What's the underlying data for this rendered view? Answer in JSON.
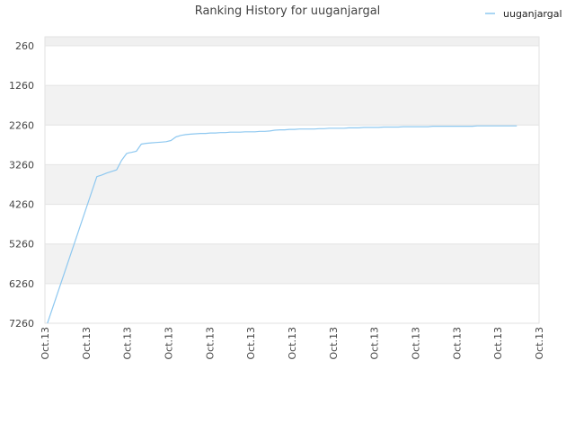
{
  "chart_data": {
    "type": "line",
    "title": "Ranking History for uuganjargal",
    "xlabel": "",
    "ylabel": "",
    "ylim": [
      260,
      7260
    ],
    "y_inverted": true,
    "y_ticks": [
      "260",
      "1260",
      "2260",
      "3260",
      "4260",
      "5260",
      "6260",
      "7260"
    ],
    "x_ticks": [
      "Oct.13",
      "Oct.13",
      "Oct.13",
      "Oct.13",
      "Oct.13",
      "Oct.13",
      "Oct.13",
      "Oct.13",
      "Oct.13",
      "Oct.13",
      "Oct.13",
      "Oct.13",
      "Oct.13"
    ],
    "grid": true,
    "alternating_bands": true,
    "legend_position": "top-right",
    "series": [
      {
        "name": "uuganjargal",
        "color": "#8ec8f0",
        "x": [
          0.005,
          0.105,
          0.115,
          0.125,
          0.135,
          0.145,
          0.155,
          0.165,
          0.17,
          0.175,
          0.185,
          0.195,
          0.205,
          0.215,
          0.225,
          0.235,
          0.245,
          0.255,
          0.265,
          0.275,
          0.285,
          0.295,
          0.305,
          0.315,
          0.325,
          0.335,
          0.345,
          0.355,
          0.365,
          0.375,
          0.385,
          0.395,
          0.405,
          0.415,
          0.425,
          0.435,
          0.445,
          0.455,
          0.465,
          0.475,
          0.485,
          0.495,
          0.505,
          0.515,
          0.525,
          0.535,
          0.545,
          0.555,
          0.565,
          0.575,
          0.585,
          0.595,
          0.605,
          0.615,
          0.625,
          0.635,
          0.645,
          0.655,
          0.665,
          0.675,
          0.685,
          0.695,
          0.705,
          0.715,
          0.725,
          0.735,
          0.745,
          0.755,
          0.765,
          0.775,
          0.785,
          0.795,
          0.805,
          0.815,
          0.825,
          0.835,
          0.845,
          0.855,
          0.865,
          0.875,
          0.885,
          0.895,
          0.905,
          0.915,
          0.925,
          0.935,
          0.945,
          0.955
        ],
        "values": [
          7260,
          3560,
          3520,
          3470,
          3430,
          3390,
          3150,
          2980,
          2960,
          2950,
          2920,
          2740,
          2720,
          2710,
          2700,
          2690,
          2680,
          2650,
          2560,
          2520,
          2500,
          2490,
          2480,
          2470,
          2470,
          2460,
          2460,
          2450,
          2450,
          2440,
          2440,
          2440,
          2430,
          2430,
          2430,
          2420,
          2420,
          2410,
          2390,
          2380,
          2380,
          2370,
          2370,
          2360,
          2360,
          2360,
          2360,
          2350,
          2350,
          2340,
          2340,
          2340,
          2340,
          2330,
          2330,
          2330,
          2320,
          2320,
          2320,
          2320,
          2310,
          2310,
          2310,
          2310,
          2300,
          2300,
          2300,
          2300,
          2300,
          2300,
          2290,
          2290,
          2290,
          2290,
          2290,
          2290,
          2290,
          2290,
          2290,
          2280,
          2280,
          2280,
          2280,
          2280,
          2280,
          2280,
          2280,
          2280
        ]
      }
    ]
  }
}
